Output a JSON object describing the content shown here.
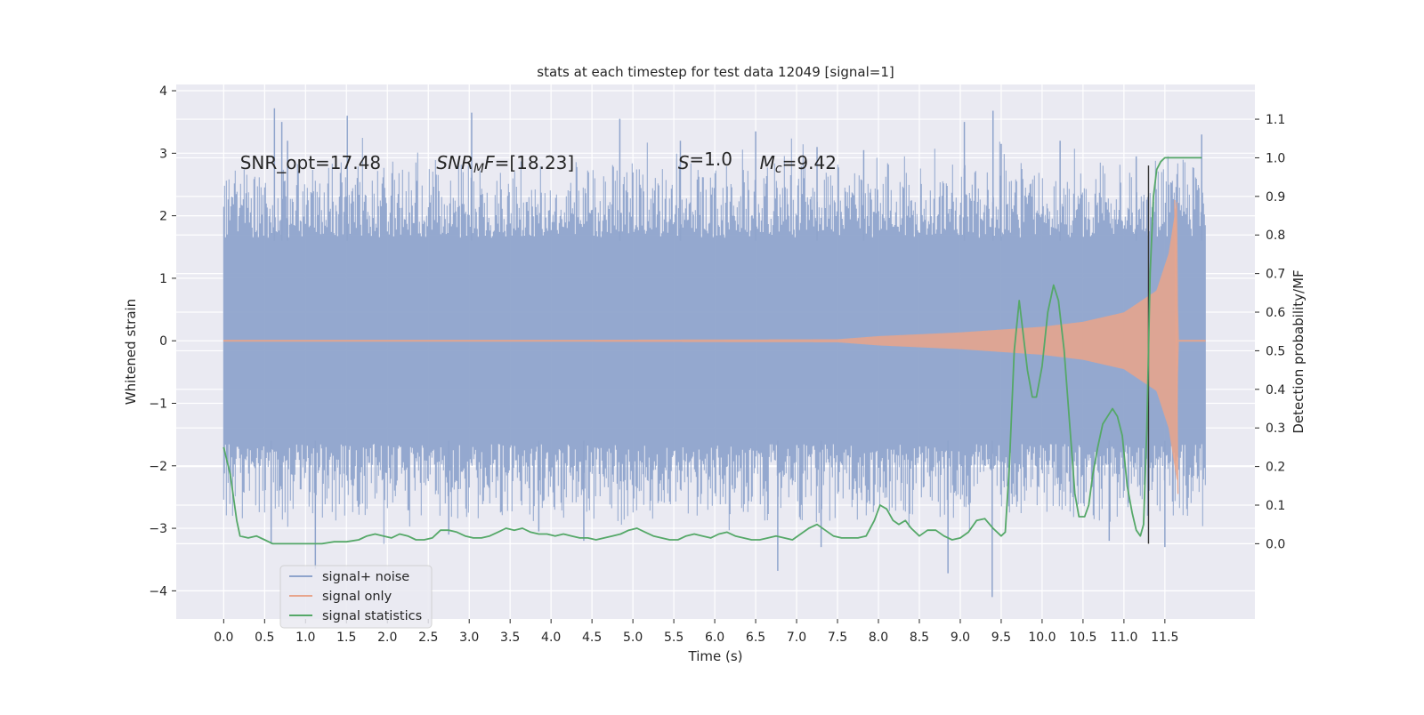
{
  "chart_data": {
    "type": "line",
    "title": "stats at each timestep for test data 12049 [signal=1]",
    "xlabel": "Time (s)",
    "ylabel": "Whitened strain",
    "y2label": "Detection probability/MF",
    "xlim": [
      -0.58,
      12.6
    ],
    "ylim": [
      -4.45,
      4.1
    ],
    "y2lim": [
      -0.195,
      1.19
    ],
    "x_ticks": [
      0.0,
      0.5,
      1.0,
      1.5,
      2.0,
      2.5,
      3.0,
      3.5,
      4.0,
      4.5,
      5.0,
      5.5,
      6.0,
      6.5,
      7.0,
      7.5,
      8.0,
      8.5,
      9.0,
      9.5,
      10.0,
      10.5,
      11.0,
      11.5
    ],
    "x_tick_labels": [
      "0.0",
      "0.5",
      "1.0",
      "1.5",
      "2.0",
      "2.5",
      "3.0",
      "3.5",
      "4.0",
      "4.5",
      "5.0",
      "5.5",
      "6.0",
      "6.5",
      "7.0",
      "7.5",
      "8.0",
      "8.5",
      "9.0",
      "9.5",
      "10.0",
      "10.5",
      "11.0",
      "11.5"
    ],
    "y_ticks": [
      -4,
      -3,
      -2,
      -1,
      0,
      1,
      2,
      3,
      4
    ],
    "y_tick_labels": [
      "−4",
      "−3",
      "−2",
      "−1",
      "0",
      "1",
      "2",
      "3",
      "4"
    ],
    "y2_ticks": [
      0.0,
      0.1,
      0.2,
      0.3,
      0.4,
      0.5,
      0.6,
      0.7,
      0.8,
      0.9,
      1.0,
      1.1
    ],
    "y2_tick_labels": [
      "0.0",
      "0.1",
      "0.2",
      "0.3",
      "0.4",
      "0.5",
      "0.6",
      "0.7",
      "0.8",
      "0.9",
      "1.0",
      "1.1"
    ],
    "grid": true,
    "legend_position": "lower-left",
    "annotations": [
      {
        "text": "SNR_opt=17.48",
        "x": 0.2,
        "y": 2.85
      },
      {
        "text": "SNR_MF=[18.23]",
        "x": 2.6,
        "y": 2.85,
        "parts": [
          {
            "t": "SNR",
            "style": "italic"
          },
          {
            "t": "M",
            "style": "italic-sub"
          },
          {
            "t": "F=[18.23]",
            "style": "mixed"
          }
        ]
      },
      {
        "text": "S=1.0",
        "x": 5.55,
        "y": 2.85,
        "parts": [
          {
            "t": "S",
            "style": "italic"
          },
          {
            "t": "=1.0",
            "style": "normal"
          }
        ]
      },
      {
        "text": "M_c=9.42",
        "x": 6.55,
        "y": 2.85,
        "parts": [
          {
            "t": "M",
            "style": "italic"
          },
          {
            "t": "c",
            "style": "italic-sub"
          },
          {
            "t": "=9.42",
            "style": "normal"
          }
        ]
      }
    ],
    "vline": {
      "x": 11.3,
      "ymin": 0.0,
      "ymax": 0.98,
      "axis": "y2",
      "color": "#333333"
    },
    "series": [
      {
        "name": "signal+ noise",
        "axis": "y",
        "color": "#8fa4cc",
        "style": "noise",
        "x_range": [
          0.0,
          12.0
        ],
        "core_amplitude": 1.65,
        "typical_extreme": 2.3,
        "peaks": [
          {
            "x": 0.62,
            "y": 3.72
          },
          {
            "x": 0.71,
            "y": 3.5
          },
          {
            "x": 0.78,
            "y": 3.2
          },
          {
            "x": 1.51,
            "y": 3.6
          },
          {
            "x": 3.03,
            "y": 3.65
          },
          {
            "x": 4.84,
            "y": 3.55
          },
          {
            "x": 5.58,
            "y": 3.2
          },
          {
            "x": 6.5,
            "y": 3.35
          },
          {
            "x": 7.25,
            "y": 3.1
          },
          {
            "x": 7.82,
            "y": 3.05
          },
          {
            "x": 9.05,
            "y": 3.5
          },
          {
            "x": 9.4,
            "y": 3.68
          },
          {
            "x": 9.5,
            "y": 3.15
          },
          {
            "x": 10.22,
            "y": 3.2
          },
          {
            "x": 11.15,
            "y": 2.95
          },
          {
            "x": 11.95,
            "y": 3.3
          }
        ],
        "troughs": [
          {
            "x": 0.58,
            "y": -3.25
          },
          {
            "x": 1.12,
            "y": -3.65
          },
          {
            "x": 2.75,
            "y": -3.1
          },
          {
            "x": 3.85,
            "y": -3.05
          },
          {
            "x": 4.4,
            "y": -3.2
          },
          {
            "x": 6.77,
            "y": -3.68
          },
          {
            "x": 7.3,
            "y": -3.3
          },
          {
            "x": 8.85,
            "y": -3.72
          },
          {
            "x": 9.39,
            "y": -4.1
          },
          {
            "x": 10.82,
            "y": -3.2
          },
          {
            "x": 11.5,
            "y": -3.3
          }
        ]
      },
      {
        "name": "signal only",
        "axis": "y",
        "color": "#e8a58c",
        "style": "chirp",
        "x_range": [
          0.0,
          12.0
        ],
        "envelope": [
          {
            "x": 0.0,
            "y": 0.0
          },
          {
            "x": 7.5,
            "y": 0.02
          },
          {
            "x": 8.0,
            "y": 0.07
          },
          {
            "x": 9.0,
            "y": 0.13
          },
          {
            "x": 10.0,
            "y": 0.22
          },
          {
            "x": 10.5,
            "y": 0.3
          },
          {
            "x": 11.0,
            "y": 0.45
          },
          {
            "x": 11.4,
            "y": 0.8
          },
          {
            "x": 11.55,
            "y": 1.4
          },
          {
            "x": 11.65,
            "y": 2.25
          },
          {
            "x": 11.66,
            "y": 0.0
          },
          {
            "x": 12.0,
            "y": 0.0
          }
        ]
      },
      {
        "name": "signal statistics",
        "axis": "y2",
        "color": "#55a868",
        "style": "line",
        "x": [
          0.0,
          0.08,
          0.16,
          0.2,
          0.3,
          0.4,
          0.5,
          0.6,
          0.75,
          0.9,
          1.05,
          1.2,
          1.35,
          1.5,
          1.65,
          1.75,
          1.85,
          1.95,
          2.05,
          2.15,
          2.25,
          2.35,
          2.45,
          2.55,
          2.65,
          2.75,
          2.85,
          2.95,
          3.05,
          3.15,
          3.25,
          3.35,
          3.45,
          3.55,
          3.65,
          3.75,
          3.85,
          3.95,
          4.05,
          4.15,
          4.25,
          4.35,
          4.45,
          4.55,
          4.65,
          4.75,
          4.85,
          4.95,
          5.05,
          5.15,
          5.25,
          5.35,
          5.45,
          5.55,
          5.65,
          5.75,
          5.85,
          5.95,
          6.05,
          6.15,
          6.25,
          6.35,
          6.45,
          6.55,
          6.65,
          6.75,
          6.85,
          6.95,
          7.05,
          7.15,
          7.25,
          7.35,
          7.45,
          7.55,
          7.65,
          7.75,
          7.85,
          7.95,
          8.02,
          8.1,
          8.18,
          8.25,
          8.33,
          8.4,
          8.5,
          8.6,
          8.7,
          8.8,
          8.9,
          9.0,
          9.1,
          9.2,
          9.3,
          9.4,
          9.5,
          9.55,
          9.6,
          9.66,
          9.72,
          9.76,
          9.82,
          9.88,
          9.93,
          10.0,
          10.07,
          10.14,
          10.2,
          10.27,
          10.34,
          10.4,
          10.45,
          10.52,
          10.57,
          10.62,
          10.68,
          10.74,
          10.8,
          10.86,
          10.92,
          10.98,
          11.04,
          11.1,
          11.15,
          11.2,
          11.24,
          11.28,
          11.32,
          11.36,
          11.4,
          11.45,
          11.5,
          11.6,
          11.7,
          11.8,
          11.95
        ],
        "y": [
          0.25,
          0.18,
          0.06,
          0.02,
          0.015,
          0.02,
          0.01,
          0.0,
          0.0,
          0.0,
          0.0,
          0.0,
          0.005,
          0.005,
          0.01,
          0.02,
          0.025,
          0.02,
          0.015,
          0.025,
          0.02,
          0.01,
          0.01,
          0.015,
          0.035,
          0.035,
          0.03,
          0.02,
          0.015,
          0.015,
          0.02,
          0.03,
          0.04,
          0.035,
          0.04,
          0.03,
          0.025,
          0.025,
          0.02,
          0.025,
          0.02,
          0.015,
          0.015,
          0.01,
          0.015,
          0.02,
          0.025,
          0.035,
          0.04,
          0.03,
          0.02,
          0.015,
          0.01,
          0.01,
          0.02,
          0.025,
          0.02,
          0.015,
          0.025,
          0.03,
          0.02,
          0.015,
          0.01,
          0.01,
          0.015,
          0.02,
          0.015,
          0.01,
          0.025,
          0.04,
          0.05,
          0.035,
          0.02,
          0.015,
          0.015,
          0.015,
          0.02,
          0.06,
          0.1,
          0.09,
          0.06,
          0.05,
          0.06,
          0.04,
          0.02,
          0.035,
          0.035,
          0.02,
          0.01,
          0.015,
          0.03,
          0.06,
          0.065,
          0.04,
          0.02,
          0.03,
          0.2,
          0.5,
          0.63,
          0.56,
          0.45,
          0.38,
          0.38,
          0.46,
          0.6,
          0.67,
          0.63,
          0.5,
          0.3,
          0.13,
          0.07,
          0.07,
          0.1,
          0.18,
          0.25,
          0.31,
          0.33,
          0.35,
          0.33,
          0.28,
          0.15,
          0.08,
          0.035,
          0.02,
          0.05,
          0.3,
          0.7,
          0.9,
          0.97,
          0.99,
          1.0,
          1.0,
          1.0,
          1.0,
          1.0
        ]
      }
    ]
  }
}
